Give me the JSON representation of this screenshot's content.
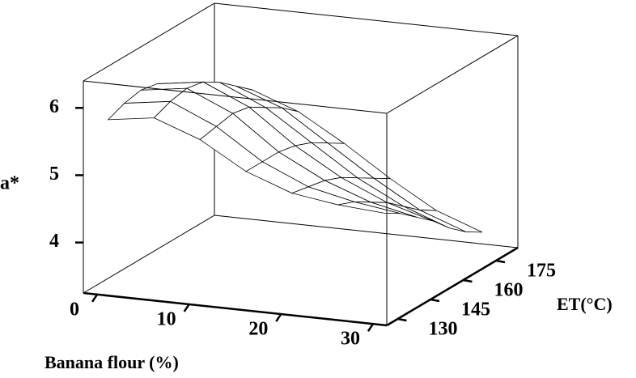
{
  "chart_data": {
    "type": "surface",
    "zlabel": "a*",
    "xlabel": "Banana flour (%)",
    "ylabel": "ET(°C)",
    "x": [
      0,
      5,
      10,
      15,
      20,
      25,
      30
    ],
    "y": [
      130,
      137.5,
      145,
      152.5,
      160,
      167.5,
      175
    ],
    "z": [
      [
        5.75,
        5.85,
        5.6,
        5.2,
        4.95,
        4.85,
        4.8
      ],
      [
        5.85,
        5.95,
        5.65,
        5.2,
        4.9,
        4.75,
        4.65
      ],
      [
        5.9,
        6.0,
        5.7,
        5.2,
        4.85,
        4.6,
        4.45
      ],
      [
        5.85,
        5.95,
        5.65,
        5.15,
        4.75,
        4.45,
        4.25
      ],
      [
        5.7,
        5.8,
        5.5,
        5.05,
        4.6,
        4.25,
        4.0
      ],
      [
        5.5,
        5.6,
        5.35,
        4.9,
        4.45,
        4.05,
        3.8
      ],
      [
        5.3,
        5.4,
        5.15,
        4.75,
        4.3,
        3.9,
        3.65
      ]
    ],
    "xlim": [
      -1.5,
      31.5
    ],
    "ylim": [
      125,
      185
    ],
    "zlim": [
      3.25,
      6.4
    ],
    "xticks": [
      0,
      10,
      20,
      30
    ],
    "yticks": [
      130,
      145,
      160,
      175
    ],
    "zticks": [
      4,
      5,
      6
    ],
    "color": "#ffffff"
  }
}
